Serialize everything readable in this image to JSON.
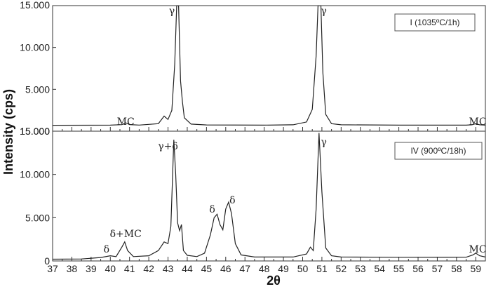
{
  "chart_data": {
    "type": "line",
    "xlabel": "2θ",
    "ylabel": "Intensity (cps)",
    "xlim": [
      37,
      59.5
    ],
    "x_ticks": [
      "37",
      "38",
      "39",
      "40",
      "41",
      "42",
      "43",
      "44",
      "45",
      "46",
      "47",
      "48",
      "49",
      "50",
      "51",
      "52",
      "53",
      "54",
      "55",
      "56",
      "57",
      "58",
      "59"
    ],
    "ylim": [
      0,
      15000
    ],
    "y_tick_labels": [
      "0",
      "5.000",
      "10.000",
      "15.000"
    ],
    "panels": [
      {
        "legend": "I (1035ºC/1h)",
        "ytick_overrides": {
          "0": "15.000"
        },
        "series": [
          {
            "points": [
              [
                37,
                700
              ],
              [
                40,
                720
              ],
              [
                40.6,
                780
              ],
              [
                40.8,
                1000
              ],
              [
                41.0,
                790
              ],
              [
                41.5,
                730
              ],
              [
                42.5,
                900
              ],
              [
                42.8,
                1800
              ],
              [
                43.0,
                1400
              ],
              [
                43.2,
                2500
              ],
              [
                43.35,
                8000
              ],
              [
                43.45,
                15000
              ],
              [
                43.55,
                15000
              ],
              [
                43.65,
                6000
              ],
              [
                43.75,
                3500
              ],
              [
                43.85,
                1600
              ],
              [
                44.2,
                850
              ],
              [
                45,
                750
              ],
              [
                48,
                720
              ],
              [
                49.5,
                760
              ],
              [
                50.2,
                1100
              ],
              [
                50.5,
                2600
              ],
              [
                50.7,
                9000
              ],
              [
                50.8,
                15000
              ],
              [
                50.95,
                15000
              ],
              [
                51.05,
                7000
              ],
              [
                51.2,
                2000
              ],
              [
                51.5,
                900
              ],
              [
                52,
                760
              ],
              [
                55,
                720
              ],
              [
                58.5,
                720
              ],
              [
                58.8,
                760
              ],
              [
                59.0,
                900
              ],
              [
                59.2,
                760
              ],
              [
                59.5,
                720
              ]
            ]
          }
        ],
        "annotations": [
          {
            "text": "γ",
            "x": 43.2
          },
          {
            "text": "γ",
            "x": 51.1
          },
          {
            "text": "MC",
            "x": 40.8
          },
          {
            "text": "MC",
            "x": 59.1
          }
        ]
      },
      {
        "legend": "IV (900ºC/18h)",
        "series": [
          {
            "points": [
              [
                37,
                200
              ],
              [
                38.5,
                230
              ],
              [
                39.5,
                400
              ],
              [
                40.0,
                600
              ],
              [
                40.3,
                500
              ],
              [
                40.6,
                1600
              ],
              [
                40.75,
                2200
              ],
              [
                40.9,
                1200
              ],
              [
                41.2,
                500
              ],
              [
                42,
                600
              ],
              [
                42.5,
                1200
              ],
              [
                42.8,
                2200
              ],
              [
                43.0,
                2000
              ],
              [
                43.15,
                4000
              ],
              [
                43.3,
                14000
              ],
              [
                43.4,
                10000
              ],
              [
                43.5,
                4400
              ],
              [
                43.6,
                3500
              ],
              [
                43.7,
                4200
              ],
              [
                43.8,
                1200
              ],
              [
                44.0,
                650
              ],
              [
                44.5,
                500
              ],
              [
                44.9,
                900
              ],
              [
                45.2,
                3000
              ],
              [
                45.4,
                5000
              ],
              [
                45.55,
                5400
              ],
              [
                45.7,
                4200
              ],
              [
                45.85,
                3600
              ],
              [
                46.0,
                6000
              ],
              [
                46.15,
                6800
              ],
              [
                46.3,
                5500
              ],
              [
                46.5,
                2000
              ],
              [
                46.8,
                700
              ],
              [
                47.5,
                450
              ],
              [
                49.5,
                450
              ],
              [
                50.2,
                800
              ],
              [
                50.4,
                1600
              ],
              [
                50.55,
                1200
              ],
              [
                50.7,
                6000
              ],
              [
                50.85,
                14800
              ],
              [
                51.0,
                8000
              ],
              [
                51.2,
                1500
              ],
              [
                51.5,
                600
              ],
              [
                52,
                450
              ],
              [
                55,
                420
              ],
              [
                58.5,
                430
              ],
              [
                58.85,
                700
              ],
              [
                59.0,
                900
              ],
              [
                59.2,
                600
              ],
              [
                59.5,
                450
              ]
            ]
          }
        ],
        "annotations": [
          {
            "text": "γ+δ",
            "x": 43.0
          },
          {
            "text": "γ",
            "x": 51.1
          },
          {
            "text": "δ",
            "x": 39.8
          },
          {
            "text": "δ+MC",
            "x": 40.8
          },
          {
            "text": "δ",
            "x": 45.3
          },
          {
            "text": "δ",
            "x": 46.35
          },
          {
            "text": "MC",
            "x": 59.1
          }
        ]
      }
    ]
  }
}
